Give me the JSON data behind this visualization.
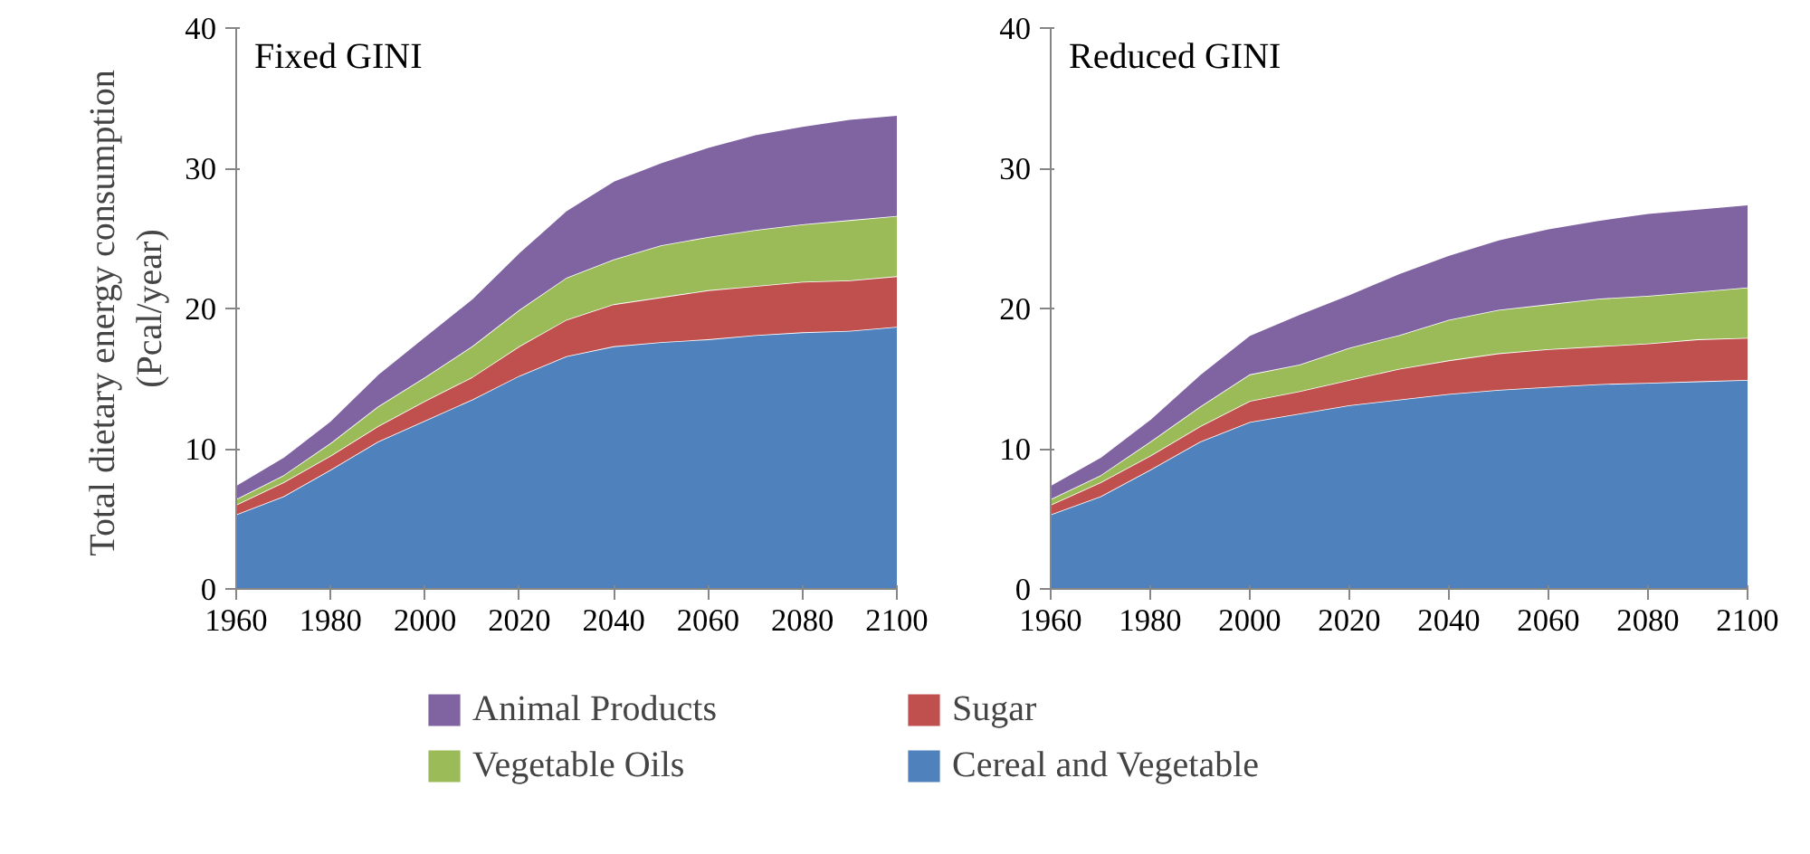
{
  "chart_data": [
    {
      "type": "area",
      "title": "Fixed GINI",
      "ylabel": "Total  dietary energy consumption\n(Pcal/year)",
      "stacked": true,
      "grid": false,
      "legend": "bottom",
      "x": [
        1960,
        1970,
        1980,
        1990,
        2000,
        2010,
        2020,
        2030,
        2040,
        2050,
        2060,
        2070,
        2080,
        2090,
        2100
      ],
      "xlim": [
        1960,
        2100
      ],
      "xticks": [
        1960,
        1980,
        2000,
        2020,
        2040,
        2060,
        2080,
        2100
      ],
      "ylim": [
        0,
        40
      ],
      "yticks": [
        0,
        10,
        20,
        30,
        40
      ],
      "series": [
        {
          "name": "Cereal and Vegetable",
          "color": "#4f81bd",
          "values": [
            5.3,
            6.6,
            8.5,
            10.5,
            12.0,
            13.5,
            15.2,
            16.6,
            17.3,
            17.6,
            17.8,
            18.1,
            18.3,
            18.4,
            18.7
          ]
        },
        {
          "name": "Sugar",
          "color": "#c0504d",
          "values": [
            0.7,
            1.0,
            1.0,
            1.1,
            1.4,
            1.6,
            2.1,
            2.6,
            3.0,
            3.2,
            3.5,
            3.5,
            3.6,
            3.6,
            3.6
          ]
        },
        {
          "name": "Vegetable Oils",
          "color": "#9bbb59",
          "values": [
            0.4,
            0.5,
            0.9,
            1.4,
            1.7,
            2.2,
            2.6,
            3.0,
            3.2,
            3.7,
            3.8,
            4.0,
            4.1,
            4.3,
            4.3
          ]
        },
        {
          "name": "Animal Products",
          "color": "#8064a2",
          "values": [
            1.0,
            1.3,
            1.6,
            2.3,
            2.9,
            3.4,
            4.1,
            4.8,
            5.6,
            5.9,
            6.4,
            6.8,
            7.0,
            7.2,
            7.2
          ]
        }
      ]
    },
    {
      "type": "area",
      "title": "Reduced GINI",
      "stacked": true,
      "grid": false,
      "x": [
        1960,
        1970,
        1980,
        1990,
        2000,
        2010,
        2020,
        2030,
        2040,
        2050,
        2060,
        2070,
        2080,
        2090,
        2100
      ],
      "xlim": [
        1960,
        2100
      ],
      "xticks": [
        1960,
        1980,
        2000,
        2020,
        2040,
        2060,
        2080,
        2100
      ],
      "ylim": [
        0,
        40
      ],
      "yticks": [
        0,
        10,
        20,
        30,
        40
      ],
      "series": [
        {
          "color": "#4f81bd",
          "values": [
            5.3,
            6.6,
            8.5,
            10.5,
            11.9,
            12.5,
            13.1,
            13.5,
            13.9,
            14.2,
            14.4,
            14.6,
            14.7,
            14.8,
            14.9
          ]
        },
        {
          "color": "#c0504d",
          "values": [
            0.7,
            1.0,
            1.0,
            1.1,
            1.5,
            1.6,
            1.8,
            2.2,
            2.4,
            2.6,
            2.7,
            2.7,
            2.8,
            3.0,
            3.0
          ]
        },
        {
          "color": "#9bbb59",
          "values": [
            0.4,
            0.5,
            1.0,
            1.4,
            1.9,
            1.9,
            2.3,
            2.4,
            2.9,
            3.1,
            3.2,
            3.4,
            3.4,
            3.4,
            3.6
          ]
        },
        {
          "color": "#8064a2",
          "values": [
            1.0,
            1.3,
            1.6,
            2.3,
            2.8,
            3.6,
            3.8,
            4.4,
            4.6,
            5.0,
            5.4,
            5.6,
            5.9,
            5.9,
            5.9
          ]
        }
      ]
    }
  ]
}
